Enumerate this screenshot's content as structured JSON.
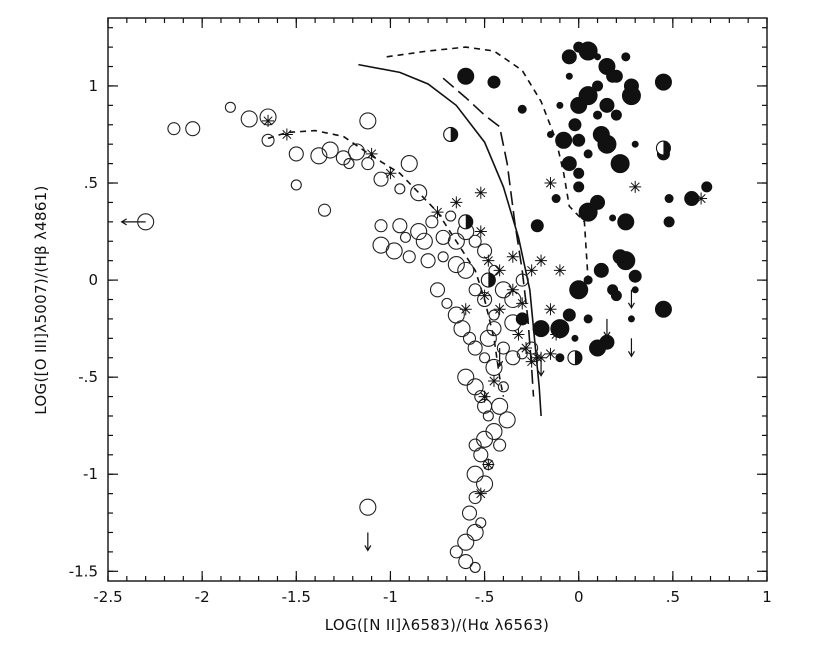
{
  "chart_data": {
    "type": "scatter",
    "title": "",
    "xlabel": "LOG([N II]λ6583)/(Hα λ6563)",
    "ylabel": "LOG([O III]λ5007)/(Hβ λ4861)",
    "xlim": [
      -2.5,
      1.0
    ],
    "ylim": [
      -1.55,
      1.35
    ],
    "x_ticks": [
      {
        "value": -2.5,
        "label": "-2.5"
      },
      {
        "value": -2,
        "label": "-2"
      },
      {
        "value": -1.5,
        "label": "-1.5"
      },
      {
        "value": -1,
        "label": "-1"
      },
      {
        "value": -0.5,
        "label": "-.5"
      },
      {
        "value": 0,
        "label": "0"
      },
      {
        "value": 0.5,
        "label": ".5"
      },
      {
        "value": 1,
        "label": "1"
      }
    ],
    "y_ticks": [
      {
        "value": -1.5,
        "label": "-1.5"
      },
      {
        "value": -1,
        "label": "-1"
      },
      {
        "value": -0.5,
        "label": "-.5"
      },
      {
        "value": 0,
        "label": "0"
      },
      {
        "value": 0.5,
        "label": ".5"
      },
      {
        "value": 1,
        "label": "1"
      }
    ],
    "grid": false,
    "legend": "none",
    "series": [
      {
        "marker": "open-circle",
        "points": [
          [
            -2.3,
            0.3
          ],
          [
            -2.15,
            0.78
          ],
          [
            -2.05,
            0.78
          ],
          [
            -1.85,
            0.89
          ],
          [
            -1.75,
            0.83
          ],
          [
            -1.65,
            0.84
          ],
          [
            -1.65,
            0.72
          ],
          [
            -1.5,
            0.65
          ],
          [
            -1.5,
            0.49
          ],
          [
            -1.38,
            0.64
          ],
          [
            -1.32,
            0.67
          ],
          [
            -1.35,
            0.36
          ],
          [
            -1.25,
            0.63
          ],
          [
            -1.22,
            0.6
          ],
          [
            -1.18,
            0.66
          ],
          [
            -1.12,
            0.82
          ],
          [
            -1.12,
            0.6
          ],
          [
            -1.05,
            0.52
          ],
          [
            -0.95,
            0.47
          ],
          [
            -0.9,
            0.6
          ],
          [
            -0.85,
            0.45
          ],
          [
            -1.05,
            0.28
          ],
          [
            -0.95,
            0.28
          ],
          [
            -0.92,
            0.22
          ],
          [
            -0.85,
            0.25
          ],
          [
            -0.82,
            0.2
          ],
          [
            -0.78,
            0.3
          ],
          [
            -0.72,
            0.22
          ],
          [
            -0.68,
            0.33
          ],
          [
            -0.65,
            0.2
          ],
          [
            -0.6,
            0.25
          ],
          [
            -0.55,
            0.2
          ],
          [
            -0.5,
            0.15
          ],
          [
            -0.45,
            0.05
          ],
          [
            -1.05,
            0.18
          ],
          [
            -0.98,
            0.15
          ],
          [
            -0.9,
            0.12
          ],
          [
            -0.8,
            0.1
          ],
          [
            -0.72,
            0.12
          ],
          [
            -0.65,
            0.08
          ],
          [
            -0.6,
            0.05
          ],
          [
            -0.55,
            -0.05
          ],
          [
            -0.5,
            -0.1
          ],
          [
            -0.45,
            -0.18
          ],
          [
            -0.4,
            -0.05
          ],
          [
            -0.35,
            -0.1
          ],
          [
            -0.3,
            0.0
          ],
          [
            -0.75,
            -0.05
          ],
          [
            -0.7,
            -0.12
          ],
          [
            -0.65,
            -0.18
          ],
          [
            -0.62,
            -0.25
          ],
          [
            -0.58,
            -0.3
          ],
          [
            -0.55,
            -0.35
          ],
          [
            -0.5,
            -0.4
          ],
          [
            -0.48,
            -0.3
          ],
          [
            -0.45,
            -0.45
          ],
          [
            -0.4,
            -0.35
          ],
          [
            -0.35,
            -0.4
          ],
          [
            -0.3,
            -0.38
          ],
          [
            -0.6,
            -0.5
          ],
          [
            -0.55,
            -0.55
          ],
          [
            -0.52,
            -0.6
          ],
          [
            -0.5,
            -0.65
          ],
          [
            -0.48,
            -0.7
          ],
          [
            -0.45,
            -0.78
          ],
          [
            -0.5,
            -0.82
          ],
          [
            -0.55,
            -0.85
          ],
          [
            -0.52,
            -0.9
          ],
          [
            -0.48,
            -0.95
          ],
          [
            -0.55,
            -1.0
          ],
          [
            -0.5,
            -1.05
          ],
          [
            -0.55,
            -1.12
          ],
          [
            -0.58,
            -1.2
          ],
          [
            -0.52,
            -1.25
          ],
          [
            -0.55,
            -1.3
          ],
          [
            -0.6,
            -1.35
          ],
          [
            -0.65,
            -1.4
          ],
          [
            -0.6,
            -1.45
          ],
          [
            -0.55,
            -1.48
          ],
          [
            -1.12,
            -1.17
          ],
          [
            -0.35,
            -0.22
          ],
          [
            -0.25,
            -0.35
          ],
          [
            -0.45,
            -0.25
          ],
          [
            -0.4,
            -0.55
          ],
          [
            -0.42,
            -0.65
          ],
          [
            -0.38,
            -0.72
          ],
          [
            -0.42,
            -0.85
          ]
        ]
      },
      {
        "marker": "filled-circle",
        "points": [
          [
            -0.6,
            1.05
          ],
          [
            -0.45,
            1.02
          ],
          [
            -0.3,
            0.88
          ],
          [
            -0.05,
            1.15
          ],
          [
            0.0,
            1.2
          ],
          [
            0.05,
            1.18
          ],
          [
            0.1,
            1.15
          ],
          [
            0.15,
            1.1
          ],
          [
            0.2,
            1.05
          ],
          [
            0.25,
            1.15
          ],
          [
            0.28,
            1.0
          ],
          [
            0.1,
            1.0
          ],
          [
            0.05,
            0.95
          ],
          [
            -0.05,
            1.05
          ],
          [
            0.0,
            0.9
          ],
          [
            -0.02,
            0.8
          ],
          [
            0.1,
            0.85
          ],
          [
            0.15,
            0.9
          ],
          [
            0.2,
            0.85
          ],
          [
            0.28,
            0.95
          ],
          [
            -0.15,
            0.75
          ],
          [
            -0.08,
            0.72
          ],
          [
            0.0,
            0.72
          ],
          [
            0.05,
            0.65
          ],
          [
            -0.05,
            0.6
          ],
          [
            0.0,
            0.55
          ],
          [
            0.15,
            0.7
          ],
          [
            0.3,
            0.7
          ],
          [
            0.45,
            1.02
          ],
          [
            0.45,
            0.65
          ],
          [
            0.48,
            0.42
          ],
          [
            0.6,
            0.42
          ],
          [
            0.68,
            0.48
          ],
          [
            0.05,
            0.35
          ],
          [
            0.18,
            0.32
          ],
          [
            0.25,
            0.3
          ],
          [
            -0.22,
            0.28
          ],
          [
            0.05,
            0.0
          ],
          [
            0.12,
            0.05
          ],
          [
            0.18,
            -0.05
          ],
          [
            0.25,
            0.1
          ],
          [
            0.3,
            -0.05
          ],
          [
            0.45,
            -0.15
          ],
          [
            -0.05,
            -0.18
          ],
          [
            0.05,
            -0.2
          ],
          [
            0.15,
            -0.32
          ],
          [
            0.2,
            -0.08
          ],
          [
            -0.1,
            -0.25
          ],
          [
            -0.02,
            -0.3
          ],
          [
            -0.2,
            -0.25
          ],
          [
            -0.3,
            -0.2
          ],
          [
            -0.1,
            -0.4
          ],
          [
            0.22,
            0.12
          ],
          [
            0.48,
            0.3
          ],
          [
            0.0,
            -0.05
          ],
          [
            0.28,
            -0.2
          ],
          [
            0.1,
            -0.35
          ],
          [
            0.3,
            0.02
          ],
          [
            -0.12,
            0.42
          ],
          [
            0.1,
            0.4
          ],
          [
            0.0,
            0.48
          ],
          [
            0.22,
            0.6
          ],
          [
            -0.1,
            0.9
          ],
          [
            0.12,
            0.75
          ],
          [
            0.18,
            1.05
          ]
        ]
      },
      {
        "marker": "half-filled-circle",
        "points": [
          [
            -0.68,
            0.75
          ],
          [
            -0.6,
            0.3
          ],
          [
            -0.48,
            0.0
          ],
          [
            0.45,
            0.68
          ],
          [
            -0.02,
            -0.4
          ]
        ]
      },
      {
        "marker": "asterisk",
        "points": [
          [
            -1.65,
            0.82
          ],
          [
            -1.55,
            0.75
          ],
          [
            -1.1,
            0.65
          ],
          [
            -1.0,
            0.55
          ],
          [
            -0.75,
            0.35
          ],
          [
            -0.65,
            0.4
          ],
          [
            -0.52,
            0.25
          ],
          [
            -0.48,
            0.1
          ],
          [
            -0.42,
            0.05
          ],
          [
            -0.5,
            -0.08
          ],
          [
            -0.42,
            -0.15
          ],
          [
            -0.35,
            -0.05
          ],
          [
            -0.28,
            -0.35
          ],
          [
            -0.25,
            -0.42
          ],
          [
            -0.2,
            -0.4
          ],
          [
            -0.2,
            0.1
          ],
          [
            -0.1,
            0.05
          ],
          [
            -0.15,
            -0.15
          ],
          [
            -0.25,
            0.05
          ],
          [
            -0.3,
            -0.12
          ],
          [
            -0.15,
            0.5
          ],
          [
            0.3,
            0.48
          ],
          [
            0.65,
            0.42
          ],
          [
            -0.12,
            -0.28
          ],
          [
            -0.5,
            -0.6
          ],
          [
            -0.48,
            -0.95
          ],
          [
            -0.52,
            -1.1
          ],
          [
            -0.22,
            -0.4
          ],
          [
            -0.52,
            0.45
          ],
          [
            -0.45,
            -0.52
          ],
          [
            -0.6,
            -0.15
          ],
          [
            -0.32,
            -0.28
          ],
          [
            -0.15,
            -0.38
          ],
          [
            -0.35,
            0.12
          ]
        ]
      }
    ],
    "upper_limits": [
      [
        0.28,
        -0.05
      ],
      [
        0.28,
        -0.3
      ],
      [
        0.15,
        -0.2
      ],
      [
        -1.12,
        -1.3
      ],
      [
        -0.2,
        -0.4
      ],
      [
        -0.42,
        -0.35
      ]
    ],
    "left_limits": [
      [
        -2.3,
        0.3
      ]
    ],
    "curves": [
      {
        "style": "solid",
        "points": [
          [
            -1.17,
            1.11
          ],
          [
            -0.95,
            1.07
          ],
          [
            -0.8,
            1.01
          ],
          [
            -0.65,
            0.9
          ],
          [
            -0.5,
            0.71
          ],
          [
            -0.4,
            0.48
          ],
          [
            -0.32,
            0.22
          ],
          [
            -0.26,
            -0.05
          ],
          [
            -0.23,
            -0.35
          ],
          [
            -0.21,
            -0.55
          ],
          [
            -0.2,
            -0.7
          ]
        ]
      },
      {
        "style": "long-dash",
        "points": [
          [
            -0.72,
            1.04
          ],
          [
            -0.6,
            0.94
          ],
          [
            -0.5,
            0.85
          ],
          [
            -0.42,
            0.79
          ],
          [
            -0.38,
            0.6
          ],
          [
            -0.34,
            0.3
          ],
          [
            -0.3,
            0.05
          ],
          [
            -0.27,
            -0.2
          ],
          [
            -0.25,
            -0.45
          ],
          [
            -0.24,
            -0.6
          ]
        ]
      },
      {
        "style": "short-dash",
        "points": [
          [
            -1.65,
            0.73
          ],
          [
            -1.55,
            0.76
          ],
          [
            -1.4,
            0.77
          ],
          [
            -1.25,
            0.74
          ],
          [
            -1.1,
            0.64
          ],
          [
            -0.95,
            0.55
          ],
          [
            -0.85,
            0.45
          ],
          [
            -0.75,
            0.35
          ],
          [
            -0.65,
            0.2
          ],
          [
            -0.55,
            0.05
          ],
          [
            -0.5,
            -0.1
          ],
          [
            -0.45,
            -0.3
          ],
          [
            -0.42,
            -0.5
          ],
          [
            -0.4,
            -0.6
          ]
        ]
      },
      {
        "style": "short-dash",
        "points": [
          [
            -1.02,
            1.15
          ],
          [
            -0.8,
            1.18
          ],
          [
            -0.6,
            1.2
          ],
          [
            -0.45,
            1.18
          ],
          [
            -0.3,
            1.08
          ],
          [
            -0.2,
            0.92
          ],
          [
            -0.12,
            0.72
          ],
          [
            -0.08,
            0.55
          ],
          [
            -0.05,
            0.38
          ],
          [
            0.03,
            0.3
          ],
          [
            0.05,
            0.0
          ]
        ]
      }
    ]
  }
}
